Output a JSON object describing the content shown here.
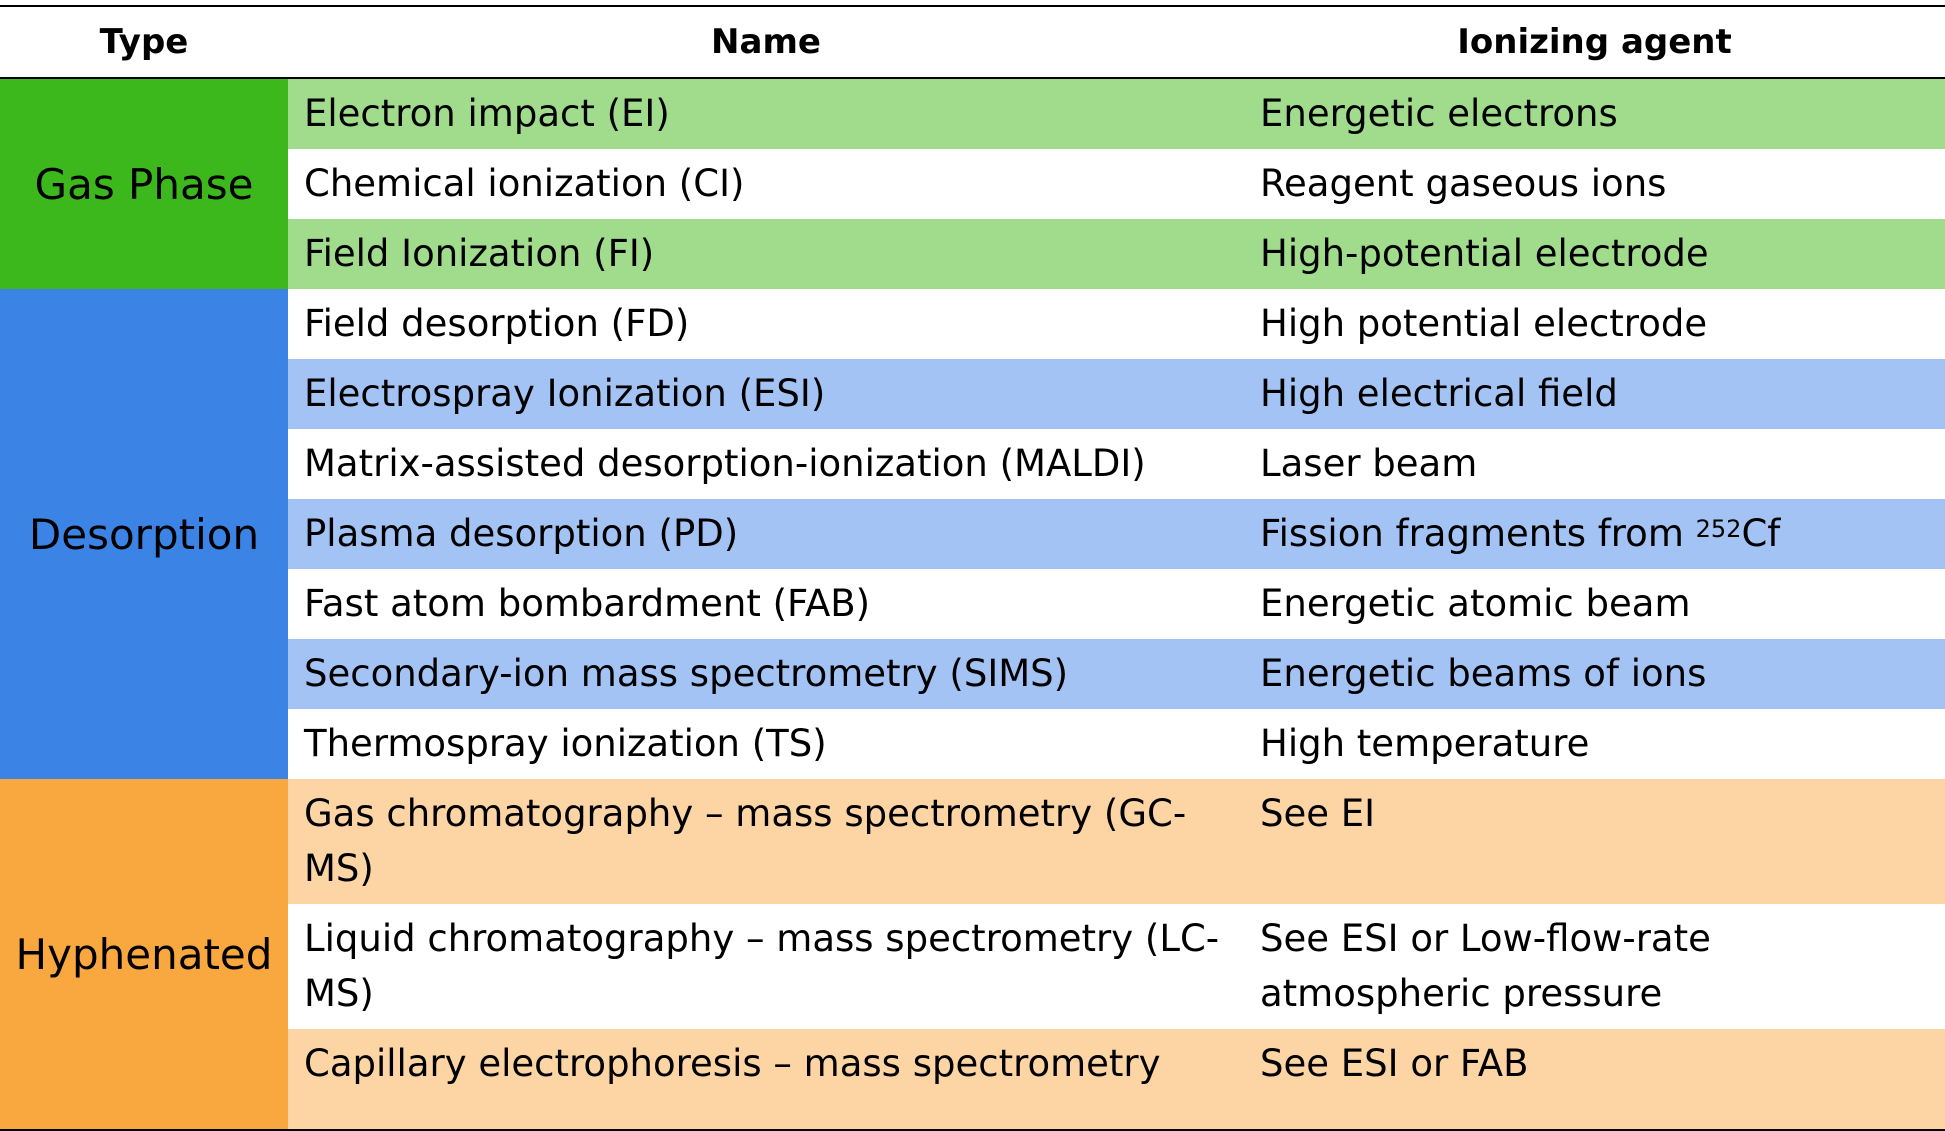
{
  "headers": {
    "type": "Type",
    "name": "Name",
    "agent": "Ionizing agent"
  },
  "groups": {
    "gas": "Gas Phase",
    "desorption": "Desorption",
    "hyphenated": "Hyphenated"
  },
  "rows": [
    {
      "name": "Electron impact (EI)",
      "agent": "Energetic electrons"
    },
    {
      "name": "Chemical ionization (CI)",
      "agent": "Reagent gaseous ions"
    },
    {
      "name": "Field Ionization (FI)",
      "agent": "High-potential electrode"
    },
    {
      "name": "Field desorption (FD)",
      "agent": "High potential electrode"
    },
    {
      "name": "Electrospray Ionization (ESI)",
      "agent": "High electrical field"
    },
    {
      "name": "Matrix-assisted desorption-ionization (MALDI)",
      "agent": "Laser beam"
    },
    {
      "name": "Plasma desorption (PD)",
      "agent": "Fission fragments from ",
      "agent_sup": "252",
      "agent_suffix": "Cf"
    },
    {
      "name": "Fast atom bombardment (FAB)",
      "agent": "Energetic atomic beam"
    },
    {
      "name": "Secondary-ion mass spectrometry (SIMS)",
      "agent": "Energetic beams of ions"
    },
    {
      "name": "Thermospray ionization (TS)",
      "agent": "High temperature"
    },
    {
      "name": "Gas chromatography – mass spectrometry (GC-MS)",
      "agent": "See EI"
    },
    {
      "name": "Liquid chromatography – mass spectrometry (LC-MS)",
      "agent": "See ESI or Low-flow-rate atmospheric pressure"
    },
    {
      "name": "Capillary electrophoresis – mass spectrometry",
      "agent": "See ESI or FAB"
    }
  ],
  "colors": {
    "gas_dark": "#3db81c",
    "gas_light": "#a0dc8c",
    "desorption_dark": "#3b84e6",
    "desorption_light": "#a3c3f5",
    "hyphenated_dark": "#f9a83f",
    "hyphenated_light": "#fdd4a4"
  }
}
